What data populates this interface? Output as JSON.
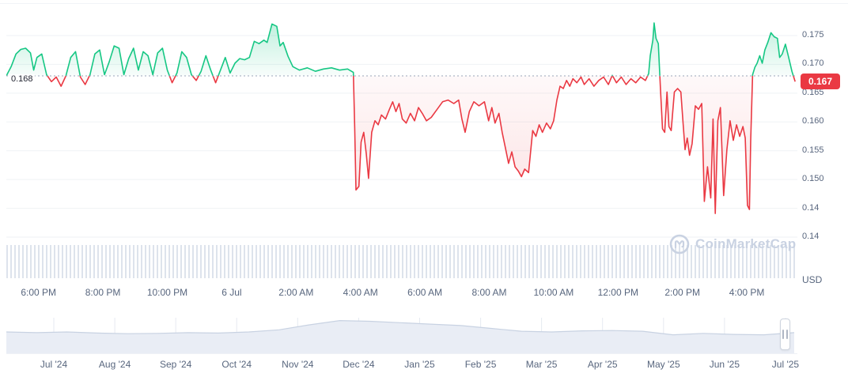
{
  "colors": {
    "green": "#16c784",
    "red": "#ea3943",
    "badge_bg": "#ea3943",
    "grid": "#eff2f5",
    "baseline_dots": "#9aa4b8",
    "axis_text": "#58667e",
    "baseline_text": "#222531",
    "watermark": "#c9d2e2",
    "minimap_fill": "#e9edf5",
    "minimap_line": "#c8d2e2",
    "minimap_grid": "#e6eaf1",
    "volume_stripe": "#dde3ec"
  },
  "watermark": {
    "text": "CoinMarketCap"
  },
  "chart_data": {
    "type": "line",
    "title": "",
    "unit": "USD",
    "baseline": {
      "label": "0.168",
      "value": 0.168
    },
    "last_price": {
      "label": "0.167",
      "value": 0.167
    },
    "grid": true,
    "legend_position": "none",
    "y_axis": {
      "ticks": [
        {
          "label": "0.175",
          "value": 0.175
        },
        {
          "label": "0.170",
          "value": 0.17
        },
        {
          "label": "0.165",
          "value": 0.165
        },
        {
          "label": "0.160",
          "value": 0.16
        },
        {
          "label": "0.155",
          "value": 0.155
        },
        {
          "label": "0.150",
          "value": 0.15
        },
        {
          "label": "0.14",
          "value": 0.145
        },
        {
          "label": "0.14",
          "value": 0.14
        }
      ]
    },
    "x_axis": {
      "ticks": [
        {
          "label": "6:00 PM",
          "hour": 0
        },
        {
          "label": "8:00 PM",
          "hour": 2
        },
        {
          "label": "10:00 PM",
          "hour": 4
        },
        {
          "label": "6 Jul",
          "hour": 6
        },
        {
          "label": "2:00 AM",
          "hour": 8
        },
        {
          "label": "4:00 AM",
          "hour": 10
        },
        {
          "label": "6:00 AM",
          "hour": 12
        },
        {
          "label": "8:00 AM",
          "hour": 14
        },
        {
          "label": "10:00 AM",
          "hour": 16
        },
        {
          "label": "12:00 PM",
          "hour": 18
        },
        {
          "label": "2:00 PM",
          "hour": 20
        },
        {
          "label": "4:00 PM",
          "hour": 22
        }
      ]
    },
    "x_range": {
      "start_hour": -1.0,
      "end_hour": 23.57
    },
    "y_range": {
      "min": 0.1385,
      "max": 0.1775
    },
    "series": {
      "name": "price",
      "unit": "USD",
      "points": [
        [
          -1.0,
          0.168
        ],
        [
          -0.85,
          0.1696
        ],
        [
          -0.7,
          0.1718
        ],
        [
          -0.55,
          0.1726
        ],
        [
          -0.4,
          0.1728
        ],
        [
          -0.25,
          0.172
        ],
        [
          -0.15,
          0.169
        ],
        [
          -0.05,
          0.1712
        ],
        [
          0.1,
          0.1718
        ],
        [
          0.25,
          0.1682
        ],
        [
          0.4,
          0.167
        ],
        [
          0.55,
          0.1678
        ],
        [
          0.7,
          0.1662
        ],
        [
          0.85,
          0.168
        ],
        [
          1.0,
          0.1712
        ],
        [
          1.15,
          0.1722
        ],
        [
          1.3,
          0.1678
        ],
        [
          1.45,
          0.1665
        ],
        [
          1.6,
          0.1682
        ],
        [
          1.75,
          0.1718
        ],
        [
          1.9,
          0.1725
        ],
        [
          2.05,
          0.1682
        ],
        [
          2.2,
          0.1705
        ],
        [
          2.35,
          0.1732
        ],
        [
          2.5,
          0.1728
        ],
        [
          2.65,
          0.1682
        ],
        [
          2.8,
          0.171
        ],
        [
          2.95,
          0.1728
        ],
        [
          3.1,
          0.169
        ],
        [
          3.25,
          0.1722
        ],
        [
          3.4,
          0.1715
        ],
        [
          3.55,
          0.1682
        ],
        [
          3.7,
          0.172
        ],
        [
          3.85,
          0.1728
        ],
        [
          4.0,
          0.169
        ],
        [
          4.15,
          0.1668
        ],
        [
          4.3,
          0.1685
        ],
        [
          4.45,
          0.1722
        ],
        [
          4.6,
          0.1712
        ],
        [
          4.75,
          0.1682
        ],
        [
          4.9,
          0.1672
        ],
        [
          5.05,
          0.1688
        ],
        [
          5.2,
          0.1715
        ],
        [
          5.35,
          0.169
        ],
        [
          5.5,
          0.1668
        ],
        [
          5.65,
          0.169
        ],
        [
          5.8,
          0.1712
        ],
        [
          5.95,
          0.1685
        ],
        [
          6.1,
          0.1702
        ],
        [
          6.25,
          0.171
        ],
        [
          6.4,
          0.1708
        ],
        [
          6.55,
          0.1712
        ],
        [
          6.7,
          0.174
        ],
        [
          6.85,
          0.1736
        ],
        [
          7.0,
          0.1742
        ],
        [
          7.1,
          0.1738
        ],
        [
          7.25,
          0.177
        ],
        [
          7.4,
          0.1766
        ],
        [
          7.5,
          0.1732
        ],
        [
          7.6,
          0.1738
        ],
        [
          7.75,
          0.1714
        ],
        [
          7.9,
          0.1696
        ],
        [
          8.1,
          0.169
        ],
        [
          8.35,
          0.1694
        ],
        [
          8.6,
          0.1688
        ],
        [
          8.85,
          0.1692
        ],
        [
          9.1,
          0.1694
        ],
        [
          9.35,
          0.169
        ],
        [
          9.6,
          0.1692
        ],
        [
          9.78,
          0.1686
        ],
        [
          9.82,
          0.159
        ],
        [
          9.86,
          0.1482
        ],
        [
          9.95,
          0.1488
        ],
        [
          10.02,
          0.1565
        ],
        [
          10.1,
          0.1582
        ],
        [
          10.18,
          0.1545
        ],
        [
          10.25,
          0.1502
        ],
        [
          10.35,
          0.1582
        ],
        [
          10.45,
          0.1602
        ],
        [
          10.55,
          0.1595
        ],
        [
          10.65,
          0.1612
        ],
        [
          10.78,
          0.1605
        ],
        [
          10.9,
          0.1622
        ],
        [
          11.0,
          0.1635
        ],
        [
          11.1,
          0.1618
        ],
        [
          11.2,
          0.1632
        ],
        [
          11.3,
          0.1605
        ],
        [
          11.42,
          0.1598
        ],
        [
          11.55,
          0.1615
        ],
        [
          11.68,
          0.1602
        ],
        [
          11.8,
          0.1625
        ],
        [
          11.92,
          0.1615
        ],
        [
          12.05,
          0.1602
        ],
        [
          12.2,
          0.1608
        ],
        [
          12.38,
          0.1622
        ],
        [
          12.55,
          0.1635
        ],
        [
          12.72,
          0.1638
        ],
        [
          12.9,
          0.1632
        ],
        [
          13.05,
          0.1638
        ],
        [
          13.15,
          0.1605
        ],
        [
          13.25,
          0.1582
        ],
        [
          13.38,
          0.1618
        ],
        [
          13.52,
          0.1635
        ],
        [
          13.68,
          0.1628
        ],
        [
          13.85,
          0.1635
        ],
        [
          13.98,
          0.1602
        ],
        [
          14.08,
          0.1625
        ],
        [
          14.18,
          0.1598
        ],
        [
          14.3,
          0.1615
        ],
        [
          14.4,
          0.1582
        ],
        [
          14.5,
          0.1555
        ],
        [
          14.6,
          0.1528
        ],
        [
          14.7,
          0.1548
        ],
        [
          14.8,
          0.1522
        ],
        [
          14.9,
          0.1515
        ],
        [
          15.0,
          0.1505
        ],
        [
          15.1,
          0.1518
        ],
        [
          15.22,
          0.1512
        ],
        [
          15.35,
          0.1585
        ],
        [
          15.45,
          0.1575
        ],
        [
          15.55,
          0.1595
        ],
        [
          15.65,
          0.1582
        ],
        [
          15.78,
          0.1598
        ],
        [
          15.9,
          0.1588
        ],
        [
          16.0,
          0.1602
        ],
        [
          16.1,
          0.1638
        ],
        [
          16.2,
          0.1662
        ],
        [
          16.3,
          0.1658
        ],
        [
          16.4,
          0.1672
        ],
        [
          16.5,
          0.1662
        ],
        [
          16.6,
          0.1675
        ],
        [
          16.72,
          0.1668
        ],
        [
          16.85,
          0.1678
        ],
        [
          16.95,
          0.1665
        ],
        [
          17.1,
          0.1675
        ],
        [
          17.25,
          0.1662
        ],
        [
          17.4,
          0.1672
        ],
        [
          17.55,
          0.1678
        ],
        [
          17.7,
          0.1665
        ],
        [
          17.82,
          0.1681
        ],
        [
          17.95,
          0.1668
        ],
        [
          18.1,
          0.1678
        ],
        [
          18.25,
          0.1665
        ],
        [
          18.4,
          0.1675
        ],
        [
          18.55,
          0.1668
        ],
        [
          18.7,
          0.1678
        ],
        [
          18.85,
          0.1672
        ],
        [
          18.95,
          0.1684
        ],
        [
          19.0,
          0.1715
        ],
        [
          19.08,
          0.1742
        ],
        [
          19.12,
          0.1772
        ],
        [
          19.18,
          0.1745
        ],
        [
          19.25,
          0.1736
        ],
        [
          19.32,
          0.1655
        ],
        [
          19.38,
          0.1588
        ],
        [
          19.45,
          0.1582
        ],
        [
          19.52,
          0.1652
        ],
        [
          19.58,
          0.1592
        ],
        [
          19.65,
          0.1585
        ],
        [
          19.75,
          0.1652
        ],
        [
          19.85,
          0.1658
        ],
        [
          19.95,
          0.1652
        ],
        [
          20.02,
          0.1598
        ],
        [
          20.08,
          0.1552
        ],
        [
          20.15,
          0.1572
        ],
        [
          20.22,
          0.1542
        ],
        [
          20.3,
          0.1562
        ],
        [
          20.4,
          0.1628
        ],
        [
          20.5,
          0.1622
        ],
        [
          20.6,
          0.1632
        ],
        [
          20.68,
          0.1462
        ],
        [
          20.78,
          0.1522
        ],
        [
          20.88,
          0.1468
        ],
        [
          20.95,
          0.1605
        ],
        [
          21.02,
          0.1441
        ],
        [
          21.1,
          0.1602
        ],
        [
          21.18,
          0.1625
        ],
        [
          21.28,
          0.1472
        ],
        [
          21.38,
          0.1552
        ],
        [
          21.48,
          0.1602
        ],
        [
          21.58,
          0.1568
        ],
        [
          21.68,
          0.1595
        ],
        [
          21.78,
          0.1575
        ],
        [
          21.88,
          0.1592
        ],
        [
          21.95,
          0.1572
        ],
        [
          22.02,
          0.1455
        ],
        [
          22.08,
          0.1448
        ],
        [
          22.12,
          0.1568
        ],
        [
          22.18,
          0.1682
        ],
        [
          22.25,
          0.1695
        ],
        [
          22.32,
          0.1702
        ],
        [
          22.4,
          0.1715
        ],
        [
          22.48,
          0.1702
        ],
        [
          22.56,
          0.1725
        ],
        [
          22.65,
          0.1738
        ],
        [
          22.75,
          0.1755
        ],
        [
          22.85,
          0.1748
        ],
        [
          22.95,
          0.1745
        ],
        [
          23.02,
          0.1712
        ],
        [
          23.1,
          0.1718
        ],
        [
          23.2,
          0.1735
        ],
        [
          23.3,
          0.1712
        ],
        [
          23.4,
          0.1688
        ],
        [
          23.5,
          0.167
        ]
      ]
    },
    "minimap": {
      "labels": [
        "Jul '24",
        "Aug '24",
        "Sep '24",
        "Oct '24",
        "Nov '24",
        "Dec '24",
        "Jan '25",
        "Feb '25",
        "Mar '25",
        "Apr '25",
        "May '25",
        "Jun '25",
        "Jul '25"
      ],
      "values": [
        0.6,
        0.58,
        0.6,
        0.57,
        0.55,
        0.56,
        0.58,
        0.57,
        0.6,
        0.66,
        0.8,
        0.92,
        0.9,
        0.86,
        0.82,
        0.78,
        0.7,
        0.62,
        0.6,
        0.63,
        0.64,
        0.62,
        0.52,
        0.56,
        0.53,
        0.52,
        0.58
      ]
    }
  }
}
